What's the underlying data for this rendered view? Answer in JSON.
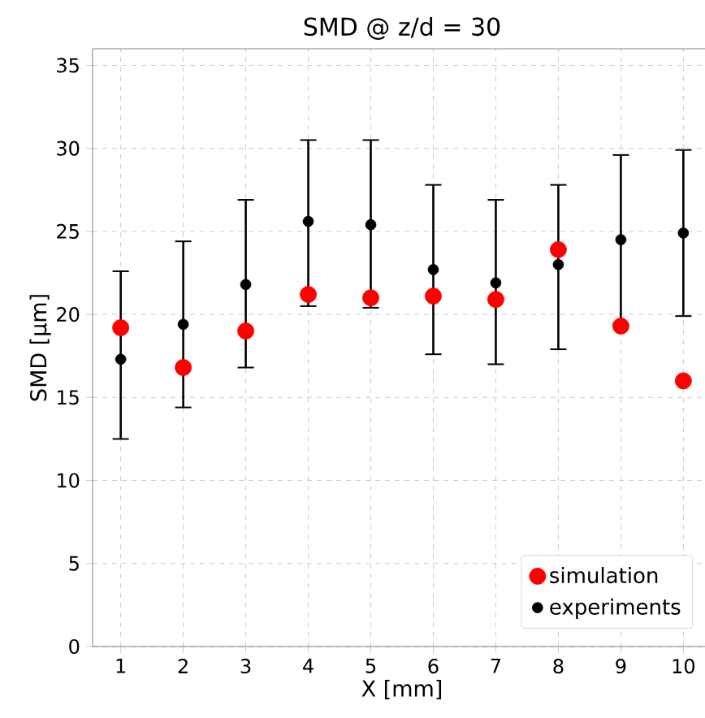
{
  "chart_data": {
    "type": "scatter",
    "title": "SMD @ z/d = 30",
    "xlabel": "X [mm]",
    "ylabel": "SMD [µm]",
    "x": [
      1,
      2,
      3,
      4,
      5,
      6,
      7,
      8,
      9,
      10
    ],
    "series": [
      {
        "name": "simulation",
        "color": "#ff0000",
        "values": [
          19.2,
          16.8,
          19.0,
          21.2,
          21.0,
          21.1,
          20.9,
          23.9,
          19.3,
          16.0
        ]
      },
      {
        "name": "experiments",
        "color": "#000000",
        "values": [
          17.3,
          19.4,
          21.8,
          25.6,
          25.4,
          22.7,
          21.9,
          23.0,
          24.5,
          24.9
        ],
        "errors": [
          [
            12.5,
            22.6
          ],
          [
            14.4,
            24.4
          ],
          [
            16.8,
            26.9
          ],
          [
            20.5,
            30.5
          ],
          [
            20.4,
            30.5
          ],
          [
            17.6,
            27.8
          ],
          [
            17.0,
            26.9
          ],
          [
            17.9,
            27.8
          ],
          [
            19.4,
            29.6
          ],
          [
            19.9,
            29.9
          ]
        ]
      }
    ],
    "xlim": [
      0.55,
      10.45
    ],
    "xticks": [
      1,
      2,
      3,
      4,
      5,
      6,
      7,
      8,
      9,
      10
    ],
    "ylim": [
      0,
      36
    ],
    "yticks": [
      0,
      5,
      10,
      15,
      20,
      25,
      30,
      35
    ],
    "grid": true,
    "legend": "bottom right",
    "marker": "circle"
  }
}
